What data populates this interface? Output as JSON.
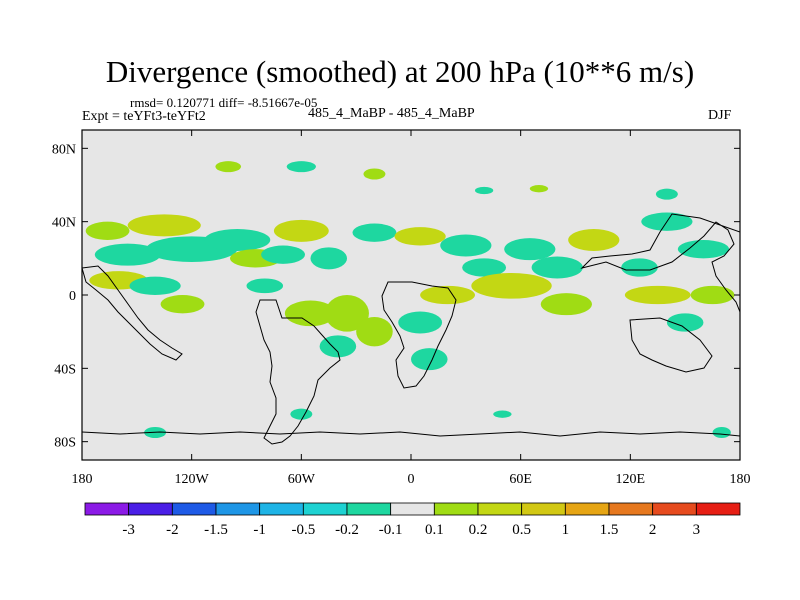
{
  "title": "Divergence (smoothed) at 200 hPa (10**6 m/s)",
  "stats": "rmsd= 0.120771 diff= -8.51667e-05",
  "experiment": "Expt = teYFt3-teYFt2",
  "center_label": "485_4_MaBP - 485_4_MaBP",
  "season": "DJF",
  "map": {
    "projection": "cylindrical equidistant",
    "lon_range": [
      -180,
      180
    ],
    "lat_range": [
      -90,
      90
    ],
    "lat_ticks": [
      {
        "value": 80,
        "label": "80N"
      },
      {
        "value": 40,
        "label": "40N"
      },
      {
        "value": 0,
        "label": "0"
      },
      {
        "value": -40,
        "label": "40S"
      },
      {
        "value": -80,
        "label": "80S"
      }
    ],
    "lon_ticks": [
      {
        "value": -180,
        "label": "180"
      },
      {
        "value": -120,
        "label": "120W"
      },
      {
        "value": -60,
        "label": "60W"
      },
      {
        "value": 0,
        "label": "0"
      },
      {
        "value": 60,
        "label": "60E"
      },
      {
        "value": 120,
        "label": "120E"
      },
      {
        "value": 180,
        "label": "180"
      }
    ],
    "background_color": "#e6e6e6",
    "coastline_color": "#000000"
  },
  "colorbar": {
    "colors": [
      "#8b1ae6",
      "#4a1ee6",
      "#1e5ae6",
      "#1e96e6",
      "#1eb4e6",
      "#1ed2d2",
      "#1ed7a0",
      "#e6e6e6",
      "#a0dc14",
      "#c3d714",
      "#d2c814",
      "#e6a514",
      "#e6781e",
      "#e64b1e",
      "#e61e14"
    ],
    "labels": [
      "-3",
      "-2",
      "-1.5",
      "-1",
      "-0.5",
      "-0.2",
      "-0.1",
      "0.1",
      "0.2",
      "0.5",
      "1",
      "1.5",
      "2",
      "3"
    ]
  },
  "features": [
    {
      "lon": -166,
      "lat": 35,
      "rx": 12,
      "ry": 5,
      "level": "pos_low"
    },
    {
      "lon": -135,
      "lat": 38,
      "rx": 20,
      "ry": 6,
      "level": "pos_mid"
    },
    {
      "lon": -120,
      "lat": 25,
      "rx": 25,
      "ry": 7,
      "level": "neg_low"
    },
    {
      "lon": -155,
      "lat": 22,
      "rx": 18,
      "ry": 6,
      "level": "neg_low"
    },
    {
      "lon": -160,
      "lat": 8,
      "rx": 16,
      "ry": 5,
      "level": "pos_mid"
    },
    {
      "lon": -140,
      "lat": 5,
      "rx": 14,
      "ry": 5,
      "level": "neg_low"
    },
    {
      "lon": -125,
      "lat": -5,
      "rx": 12,
      "ry": 5,
      "level": "pos_low"
    },
    {
      "lon": -95,
      "lat": 30,
      "rx": 18,
      "ry": 6,
      "level": "neg_low"
    },
    {
      "lon": -85,
      "lat": 20,
      "rx": 14,
      "ry": 5,
      "level": "pos_low"
    },
    {
      "lon": -60,
      "lat": 35,
      "rx": 15,
      "ry": 6,
      "level": "pos_mid"
    },
    {
      "lon": -70,
      "lat": 22,
      "rx": 12,
      "ry": 5,
      "level": "neg_low"
    },
    {
      "lon": -45,
      "lat": 20,
      "rx": 10,
      "ry": 6,
      "level": "neg_low"
    },
    {
      "lon": -80,
      "lat": 5,
      "rx": 10,
      "ry": 4,
      "level": "neg_low"
    },
    {
      "lon": -55,
      "lat": -10,
      "rx": 14,
      "ry": 7,
      "level": "pos_low"
    },
    {
      "lon": -35,
      "lat": -10,
      "rx": 12,
      "ry": 10,
      "level": "pos_low"
    },
    {
      "lon": -40,
      "lat": -28,
      "rx": 10,
      "ry": 6,
      "level": "neg_low"
    },
    {
      "lon": -20,
      "lat": -20,
      "rx": 10,
      "ry": 8,
      "level": "pos_low"
    },
    {
      "lon": -20,
      "lat": 34,
      "rx": 12,
      "ry": 5,
      "level": "neg_low"
    },
    {
      "lon": 5,
      "lat": 32,
      "rx": 14,
      "ry": 5,
      "level": "pos_mid"
    },
    {
      "lon": 30,
      "lat": 27,
      "rx": 14,
      "ry": 6,
      "level": "neg_low"
    },
    {
      "lon": 20,
      "lat": 0,
      "rx": 15,
      "ry": 5,
      "level": "pos_mid"
    },
    {
      "lon": 5,
      "lat": -15,
      "rx": 12,
      "ry": 6,
      "level": "neg_low"
    },
    {
      "lon": 10,
      "lat": -35,
      "rx": 10,
      "ry": 6,
      "level": "neg_low"
    },
    {
      "lon": 40,
      "lat": 15,
      "rx": 12,
      "ry": 5,
      "level": "neg_low"
    },
    {
      "lon": 55,
      "lat": 5,
      "rx": 22,
      "ry": 7,
      "level": "pos_mid"
    },
    {
      "lon": 65,
      "lat": 25,
      "rx": 14,
      "ry": 6,
      "level": "neg_low"
    },
    {
      "lon": 80,
      "lat": 15,
      "rx": 14,
      "ry": 6,
      "level": "neg_low"
    },
    {
      "lon": 85,
      "lat": -5,
      "rx": 14,
      "ry": 6,
      "level": "pos_low"
    },
    {
      "lon": 100,
      "lat": 30,
      "rx": 14,
      "ry": 6,
      "level": "pos_mid"
    },
    {
      "lon": 125,
      "lat": 15,
      "rx": 10,
      "ry": 5,
      "level": "neg_low"
    },
    {
      "lon": 135,
      "lat": 0,
      "rx": 18,
      "ry": 5,
      "level": "pos_mid"
    },
    {
      "lon": 140,
      "lat": 40,
      "rx": 14,
      "ry": 5,
      "level": "neg_low"
    },
    {
      "lon": 160,
      "lat": 25,
      "rx": 14,
      "ry": 5,
      "level": "neg_low"
    },
    {
      "lon": 165,
      "lat": 0,
      "rx": 12,
      "ry": 5,
      "level": "pos_low"
    },
    {
      "lon": 150,
      "lat": -15,
      "rx": 10,
      "ry": 5,
      "level": "neg_low"
    },
    {
      "lon": -100,
      "lat": 70,
      "rx": 7,
      "ry": 3,
      "level": "pos_low"
    },
    {
      "lon": -60,
      "lat": 70,
      "rx": 8,
      "ry": 3,
      "level": "neg_low"
    },
    {
      "lon": -20,
      "lat": 66,
      "rx": 6,
      "ry": 3,
      "level": "pos_low"
    },
    {
      "lon": 40,
      "lat": 57,
      "rx": 5,
      "ry": 2,
      "level": "neg_low"
    },
    {
      "lon": 70,
      "lat": 58,
      "rx": 5,
      "ry": 2,
      "level": "pos_low"
    },
    {
      "lon": 140,
      "lat": 55,
      "rx": 6,
      "ry": 3,
      "level": "neg_low"
    },
    {
      "lon": -140,
      "lat": -75,
      "rx": 6,
      "ry": 3,
      "level": "neg_low"
    },
    {
      "lon": -60,
      "lat": -65,
      "rx": 6,
      "ry": 3,
      "level": "neg_low"
    },
    {
      "lon": 50,
      "lat": -65,
      "rx": 5,
      "ry": 2,
      "level": "neg_low"
    },
    {
      "lon": 170,
      "lat": -75,
      "rx": 5,
      "ry": 3,
      "level": "neg_low"
    }
  ]
}
